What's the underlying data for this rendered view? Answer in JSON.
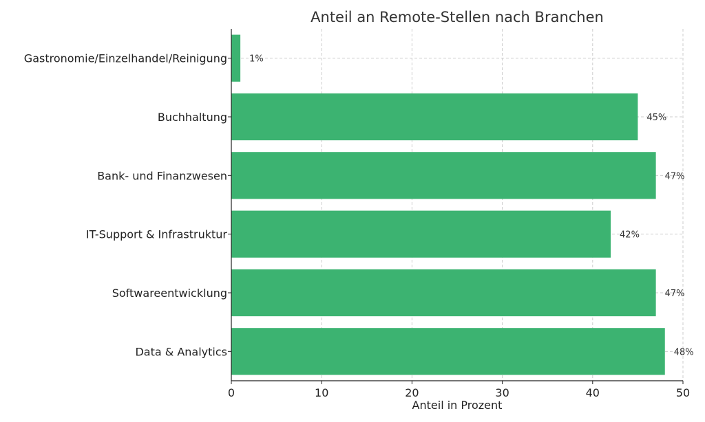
{
  "chart_data": {
    "type": "bar",
    "orientation": "horizontal",
    "title": "Anteil an Remote-Stellen nach Branchen",
    "xlabel": "Anteil in Prozent",
    "ylabel": "",
    "xlim": [
      0,
      50
    ],
    "xticks": [
      0,
      10,
      20,
      30,
      40,
      50
    ],
    "grid": true,
    "bar_color": "#3cb371",
    "categories": [
      "Gastronomie/Einzelhandel/Reinigung",
      "Buchhaltung",
      "Bank- und Finanzwesen",
      "IT-Support & Infrastruktur",
      "Softwareentwicklung",
      "Data & Analytics"
    ],
    "values": [
      1,
      45,
      47,
      42,
      47,
      48
    ],
    "value_labels": [
      "1%",
      "45%",
      "47%",
      "42%",
      "47%",
      "48%"
    ]
  }
}
